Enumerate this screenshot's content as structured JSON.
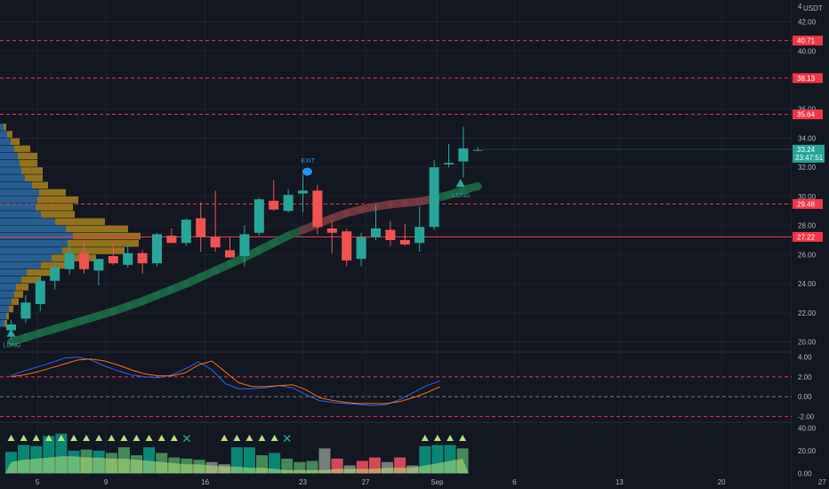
{
  "chart_data": {
    "type": "candlestick",
    "currency_label": "USDT",
    "ylim": [
      19.3,
      43.5
    ],
    "price_ticks": [
      "20.00",
      "22.00",
      "24.00",
      "26.00",
      "28.00",
      "30.00",
      "32.00",
      "34.00",
      "36.00",
      "40.00",
      "42.00"
    ],
    "x_labels": [
      {
        "i": 1.8,
        "text": "5"
      },
      {
        "i": 6.5,
        "text": "9"
      },
      {
        "i": 13.3,
        "text": "16"
      },
      {
        "i": 20.0,
        "text": "23"
      },
      {
        "i": 24.3,
        "text": "27"
      },
      {
        "i": 29.2,
        "text": "Sep"
      },
      {
        "i": 34.5,
        "text": "6"
      },
      {
        "i": 41.7,
        "text": "13"
      },
      {
        "i": 48.7,
        "text": "20"
      },
      {
        "i": 55.6,
        "text": "27"
      }
    ],
    "candles": [
      {
        "o": 20.8,
        "h": 21.5,
        "l": 20.2,
        "c": 21.2
      },
      {
        "o": 21.6,
        "h": 23.2,
        "l": 21.3,
        "c": 22.7
      },
      {
        "o": 22.6,
        "h": 24.6,
        "l": 22.1,
        "c": 24.2
      },
      {
        "o": 24.2,
        "h": 25.5,
        "l": 23.6,
        "c": 25.1
      },
      {
        "o": 25.0,
        "h": 26.6,
        "l": 24.6,
        "c": 26.1
      },
      {
        "o": 26.1,
        "h": 26.9,
        "l": 24.7,
        "c": 25.0
      },
      {
        "o": 24.9,
        "h": 25.7,
        "l": 23.9,
        "c": 25.7
      },
      {
        "o": 25.9,
        "h": 26.8,
        "l": 25.3,
        "c": 25.4
      },
      {
        "o": 25.3,
        "h": 26.6,
        "l": 25.1,
        "c": 26.1
      },
      {
        "o": 26.1,
        "h": 26.3,
        "l": 24.7,
        "c": 25.4
      },
      {
        "o": 25.4,
        "h": 27.5,
        "l": 25.2,
        "c": 27.4
      },
      {
        "o": 27.3,
        "h": 27.8,
        "l": 26.8,
        "c": 26.8
      },
      {
        "o": 26.8,
        "h": 28.5,
        "l": 26.6,
        "c": 28.4
      },
      {
        "o": 28.5,
        "h": 29.6,
        "l": 26.2,
        "c": 27.2
      },
      {
        "o": 27.2,
        "h": 30.4,
        "l": 26.2,
        "c": 26.5
      },
      {
        "o": 26.3,
        "h": 27.2,
        "l": 25.8,
        "c": 25.8
      },
      {
        "o": 25.9,
        "h": 28.0,
        "l": 25.2,
        "c": 27.4
      },
      {
        "o": 27.5,
        "h": 29.9,
        "l": 27.3,
        "c": 29.8
      },
      {
        "o": 29.7,
        "h": 31.1,
        "l": 29.0,
        "c": 29.1
      },
      {
        "o": 29.0,
        "h": 30.5,
        "l": 28.9,
        "c": 30.1
      },
      {
        "o": 30.2,
        "h": 31.5,
        "l": 28.9,
        "c": 30.4
      },
      {
        "o": 30.4,
        "h": 30.8,
        "l": 27.4,
        "c": 27.9
      },
      {
        "o": 27.8,
        "h": 28.3,
        "l": 26.1,
        "c": 27.5
      },
      {
        "o": 27.6,
        "h": 27.8,
        "l": 25.2,
        "c": 25.6
      },
      {
        "o": 25.7,
        "h": 27.5,
        "l": 25.2,
        "c": 27.2
      },
      {
        "o": 27.2,
        "h": 29.4,
        "l": 27.0,
        "c": 27.8
      },
      {
        "o": 27.7,
        "h": 28.3,
        "l": 26.6,
        "c": 27.0
      },
      {
        "o": 27.0,
        "h": 28.1,
        "l": 26.6,
        "c": 26.7
      },
      {
        "o": 26.8,
        "h": 29.3,
        "l": 26.2,
        "c": 27.9
      },
      {
        "o": 27.9,
        "h": 32.5,
        "l": 27.7,
        "c": 32.0
      },
      {
        "o": 32.2,
        "h": 33.6,
        "l": 32.0,
        "c": 32.3
      },
      {
        "o": 32.4,
        "h": 34.8,
        "l": 31.3,
        "c": 33.3
      },
      {
        "o": 33.2,
        "h": 33.4,
        "l": 33.1,
        "c": 33.2
      }
    ],
    "volume_profile": [
      {
        "p": 21.25,
        "a": 5,
        "b": 3
      },
      {
        "p": 21.75,
        "a": 7,
        "b": 3
      },
      {
        "p": 22.25,
        "a": 10,
        "b": 5
      },
      {
        "p": 22.75,
        "a": 13,
        "b": 8
      },
      {
        "p": 23.25,
        "a": 16,
        "b": 10
      },
      {
        "p": 23.75,
        "a": 18,
        "b": 14
      },
      {
        "p": 24.25,
        "a": 24,
        "b": 22
      },
      {
        "p": 24.75,
        "a": 30,
        "b": 28
      },
      {
        "p": 25.25,
        "a": 46,
        "b": 36
      },
      {
        "p": 25.75,
        "a": 58,
        "b": 50
      },
      {
        "p": 26.25,
        "a": 70,
        "b": 70
      },
      {
        "p": 26.75,
        "a": 76,
        "b": 80
      },
      {
        "p": 27.25,
        "a": 82,
        "b": 76
      },
      {
        "p": 27.75,
        "a": 74,
        "b": 70
      },
      {
        "p": 28.25,
        "a": 62,
        "b": 56
      },
      {
        "p": 28.75,
        "a": 46,
        "b": 38
      },
      {
        "p": 29.25,
        "a": 40,
        "b": 42
      },
      {
        "p": 29.75,
        "a": 42,
        "b": 46
      },
      {
        "p": 30.25,
        "a": 44,
        "b": 30
      },
      {
        "p": 30.75,
        "a": 36,
        "b": 18
      },
      {
        "p": 31.25,
        "a": 28,
        "b": 20
      },
      {
        "p": 31.75,
        "a": 24,
        "b": 24
      },
      {
        "p": 32.25,
        "a": 22,
        "b": 20
      },
      {
        "p": 32.75,
        "a": 20,
        "b": 22
      },
      {
        "p": 33.25,
        "a": 16,
        "b": 18
      },
      {
        "p": 33.75,
        "a": 12,
        "b": 10
      },
      {
        "p": 34.25,
        "a": 8,
        "b": 6
      },
      {
        "p": 34.75,
        "a": 4,
        "b": 3
      }
    ],
    "ema": [
      20.0,
      20.3,
      20.6,
      20.9,
      21.2,
      21.5,
      21.8,
      22.1,
      22.45,
      22.8,
      23.2,
      23.6,
      24.0,
      24.45,
      24.9,
      25.35,
      25.8,
      26.3,
      26.8,
      27.3,
      27.7,
      28.1,
      28.5,
      28.85,
      29.1,
      29.3,
      29.45,
      29.55,
      29.65,
      29.85,
      30.1,
      30.45,
      30.7
    ],
    "ema_colors": [
      "#1a6b46",
      "#1a6b46",
      "#1a6b46",
      "#1a6b46",
      "#1a6b46",
      "#1a6b46",
      "#1a6b46",
      "#1a6b46",
      "#1a6b46",
      "#1a6b46",
      "#1a6b46",
      "#1a6b46",
      "#1a6b46",
      "#1a6b46",
      "#1a6b46",
      "#1a6b46",
      "#1a6b46",
      "#1a6b46",
      "#1a6b46",
      "#1d5e3e",
      "#6e3a3e",
      "#7a3a40",
      "#7a3a40",
      "#7a3a40",
      "#7a3a40",
      "#7a3a40",
      "#7a3a40",
      "#7a3a40",
      "#7a3a40",
      "#1a6b46",
      "#1a6b46",
      "#1a6b46"
    ],
    "levels": [
      {
        "price": 40.71,
        "label": "40.71",
        "style": "dashed",
        "color": "#f23645"
      },
      {
        "price": 38.13,
        "label": "38.13",
        "style": "dashed",
        "color": "#f23645"
      },
      {
        "price": 35.64,
        "label": "35.64",
        "style": "dashed",
        "color": "#f23645"
      },
      {
        "price": 29.48,
        "label": "29.48",
        "style": "dashed",
        "color": "#f23645"
      },
      {
        "price": 27.22,
        "label": "27.22",
        "style": "solid",
        "color": "#f23645"
      }
    ],
    "current_price": {
      "price": 33.24,
      "label": "33.24",
      "countdown": "23:47:51",
      "color": "#26a69a"
    },
    "signals": [
      {
        "type": "LONG",
        "i": 0,
        "price": 20.6,
        "color": "#26a69a"
      },
      {
        "type": "EXIT",
        "i": 20.3,
        "price": 31.7,
        "color": "#2196f3"
      },
      {
        "type": "LONG",
        "i": 30.8,
        "price": 30.9,
        "color": "#26a69a"
      }
    ],
    "macd": {
      "ylim": [
        -2.6,
        4.5
      ],
      "ticks": [
        "4.00",
        "2.00",
        "0.00",
        "-2.00"
      ],
      "levels": [
        2.0,
        0.0,
        -2.0
      ],
      "macd_line": [
        2.1,
        2.6,
        3.0,
        3.4,
        3.9,
        4.0,
        3.7,
        3.1,
        2.6,
        2.2,
        2.0,
        1.9,
        2.2,
        2.8,
        3.5,
        2.7,
        1.3,
        0.8,
        0.8,
        0.9,
        1.1,
        0.9,
        0.2,
        -0.4,
        -0.6,
        -0.7,
        -0.8,
        -0.9,
        -0.8,
        -0.3,
        0.4,
        1.1,
        1.6
      ],
      "signal_line": [
        2.0,
        2.2,
        2.5,
        2.9,
        3.3,
        3.7,
        3.8,
        3.6,
        3.2,
        2.7,
        2.3,
        2.1,
        2.1,
        2.4,
        3.2,
        3.6,
        2.5,
        1.4,
        1.0,
        1.0,
        1.1,
        1.2,
        0.7,
        -0.1,
        -0.4,
        -0.6,
        -0.7,
        -0.7,
        -0.7,
        -0.5,
        -0.1,
        0.4,
        1.0
      ],
      "macd_color": "#2962ff",
      "signal_color": "#ff6d00"
    },
    "oscillator": {
      "ylim": [
        -2,
        45
      ],
      "ticks": [
        "40.00",
        "20.00",
        "0.00"
      ],
      "bars": [
        19,
        25,
        24,
        33,
        35,
        20,
        21,
        20,
        18,
        23,
        16,
        23,
        18,
        14,
        13,
        12,
        10,
        8,
        23,
        23,
        16,
        18,
        13,
        10,
        11,
        22,
        13,
        7,
        11,
        14,
        10,
        14,
        7,
        24,
        25,
        25,
        22
      ],
      "bar_colors": [
        "#089981",
        "#089981",
        "#089981",
        "#089981",
        "#089981",
        "#089981",
        "#4c9e63",
        "#089981",
        "#4c9e63",
        "#4c9e63",
        "#4c9e63",
        "#089981",
        "#4c9e63",
        "#4c9e63",
        "#4c9e63",
        "#4c9e63",
        "#8a8f8c",
        "#8a8f8c",
        "#089981",
        "#089981",
        "#4c9e63",
        "#089981",
        "#4c9e63",
        "#4c9e63",
        "#4c9e63",
        "#8a8f8c",
        "#f7525f",
        "#8a8f8c",
        "#f7525f",
        "#f7525f",
        "#8a8f8c",
        "#f7525f",
        "#8a8f8c",
        "#089981",
        "#089981",
        "#089981",
        "#4c9e63"
      ],
      "area": [
        10,
        12,
        13,
        14,
        15,
        15,
        14,
        14,
        13,
        13,
        12,
        11,
        10,
        9,
        8,
        8,
        7,
        6,
        6,
        5,
        5,
        4,
        3,
        3,
        3,
        3,
        4,
        4,
        4,
        4,
        5,
        5,
        5,
        7,
        9,
        11,
        13
      ],
      "markers": [
        "up",
        "up",
        "up",
        "up",
        "up",
        "up",
        "up",
        "up",
        "up",
        "up",
        "up",
        "up",
        "up",
        "up",
        "x",
        "",
        "",
        "up",
        "up",
        "up",
        "up",
        "up",
        "x",
        "",
        "",
        "",
        "",
        "",
        "",
        "",
        "",
        "",
        "",
        "up",
        "up",
        "up",
        "up"
      ]
    }
  }
}
